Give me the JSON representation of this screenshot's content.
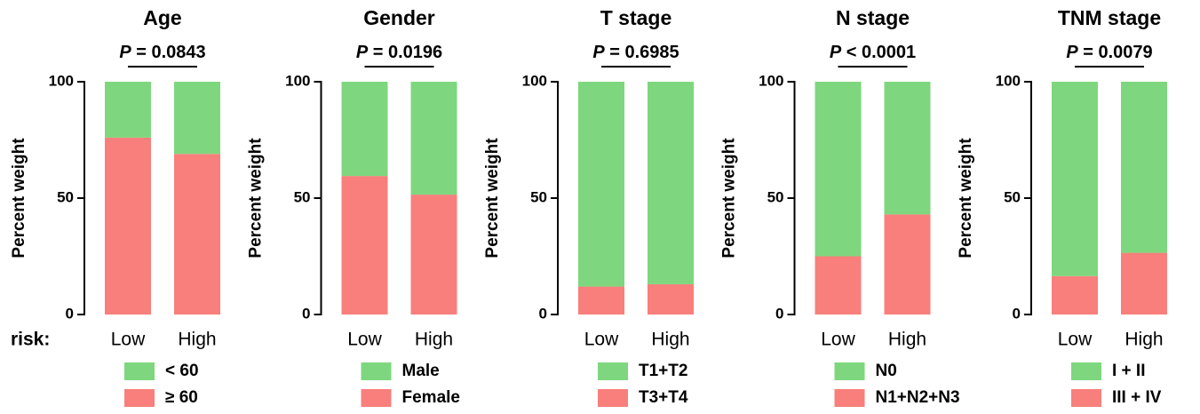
{
  "chart_data": [
    {
      "type": "stacked_bar",
      "title": "Age",
      "annotation_prefix": "P",
      "annotation": "= 0.0843",
      "ylabel": "Percent weight",
      "xlabel": "risk:",
      "categories": [
        "Low",
        "High"
      ],
      "ylim": [
        0,
        100
      ],
      "yticks": [
        0,
        50,
        100
      ],
      "series": [
        {
          "name": "< 60",
          "color": "#7ed77e",
          "values": [
            24,
            31
          ]
        },
        {
          "name": "≥ 60",
          "color": "#f87f7b",
          "values": [
            76,
            69
          ]
        }
      ]
    },
    {
      "type": "stacked_bar",
      "title": "Gender",
      "annotation_prefix": "P",
      "annotation": "= 0.0196",
      "ylabel": "Percent weight",
      "categories": [
        "Low",
        "High"
      ],
      "ylim": [
        0,
        100
      ],
      "yticks": [
        0,
        50,
        100
      ],
      "series": [
        {
          "name": "Male",
          "color": "#7ed77e",
          "values": [
            40.5,
            48.5
          ]
        },
        {
          "name": "Female",
          "color": "#f87f7b",
          "values": [
            59.5,
            51.5
          ]
        }
      ]
    },
    {
      "type": "stacked_bar",
      "title": "T stage",
      "annotation_prefix": "P",
      "annotation": "= 0.6985",
      "ylabel": "Percent weight",
      "categories": [
        "Low",
        "High"
      ],
      "ylim": [
        0,
        100
      ],
      "yticks": [
        0,
        50,
        100
      ],
      "series": [
        {
          "name": "T1+T2",
          "color": "#7ed77e",
          "values": [
            88,
            87
          ]
        },
        {
          "name": "T3+T4",
          "color": "#f87f7b",
          "values": [
            12,
            13
          ]
        }
      ]
    },
    {
      "type": "stacked_bar",
      "title": "N stage",
      "annotation_prefix": "P",
      "annotation": "< 0.0001",
      "ylabel": "Percent weight",
      "categories": [
        "Low",
        "High"
      ],
      "ylim": [
        0,
        100
      ],
      "yticks": [
        0,
        50,
        100
      ],
      "series": [
        {
          "name": "N0",
          "color": "#7ed77e",
          "values": [
            75,
            57
          ]
        },
        {
          "name": "N1+N2+N3",
          "color": "#f87f7b",
          "values": [
            25,
            43
          ]
        }
      ]
    },
    {
      "type": "stacked_bar",
      "title": "TNM stage",
      "annotation_prefix": "P",
      "annotation": "= 0.0079",
      "ylabel": "Percent weight",
      "categories": [
        "Low",
        "High"
      ],
      "ylim": [
        0,
        100
      ],
      "yticks": [
        0,
        50,
        100
      ],
      "series": [
        {
          "name": "I + II",
          "color": "#7ed77e",
          "values": [
            83.5,
            73.5
          ]
        },
        {
          "name": "III + IV",
          "color": "#f87f7b",
          "values": [
            16.5,
            26.5
          ]
        }
      ]
    }
  ]
}
